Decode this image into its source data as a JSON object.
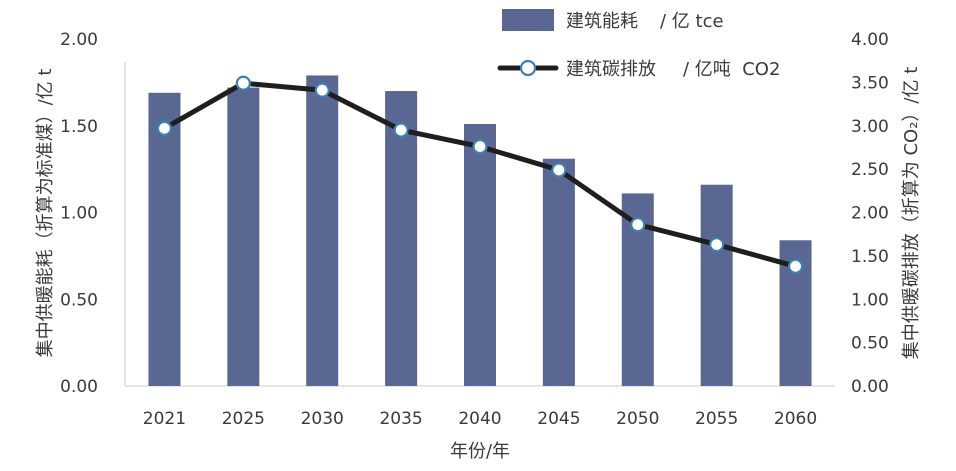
{
  "chart_data": {
    "type": "bar",
    "categories": [
      "2021",
      "2025",
      "2030",
      "2035",
      "2040",
      "2045",
      "2050",
      "2055",
      "2060"
    ],
    "series": [
      {
        "name": "建筑能耗",
        "unit": "/ 亿 tce",
        "axis_index": 0,
        "values": [
          1.69,
          1.72,
          1.79,
          1.7,
          1.51,
          1.31,
          1.11,
          1.16,
          0.84
        ]
      },
      {
        "name": "建筑碳排放",
        "unit": "/ 亿吨  CO2",
        "axis_index": 1,
        "values": [
          2.97,
          3.49,
          3.41,
          2.95,
          2.76,
          2.49,
          1.86,
          1.63,
          1.38
        ]
      }
    ],
    "xlabel": "年份/年",
    "ylabel_left": "集中供暖能耗（折算为标准煤）/亿 t",
    "ylabel_right": "集中供暖碳排放（折算为 CO₂）/亿 t",
    "ylim_left": [
      0,
      2
    ],
    "ylim_right": [
      0,
      4
    ],
    "yticks_left": [
      "0.00",
      "0.50",
      "1.00",
      "1.50",
      "2.00"
    ],
    "yticks_right": [
      "0.00",
      "0.50",
      "1.00",
      "1.50",
      "2.00",
      "2.50",
      "3.00",
      "3.50",
      "4.00"
    ],
    "grid": false,
    "legend_position": "top-right",
    "colors": {
      "bar": "#5a6792",
      "line": "#1e1e1e",
      "marker_stroke": "#3d80b3",
      "marker_fill": "#ffffff",
      "axis": "#d6d6d6",
      "text": "#3a3a3a"
    }
  }
}
